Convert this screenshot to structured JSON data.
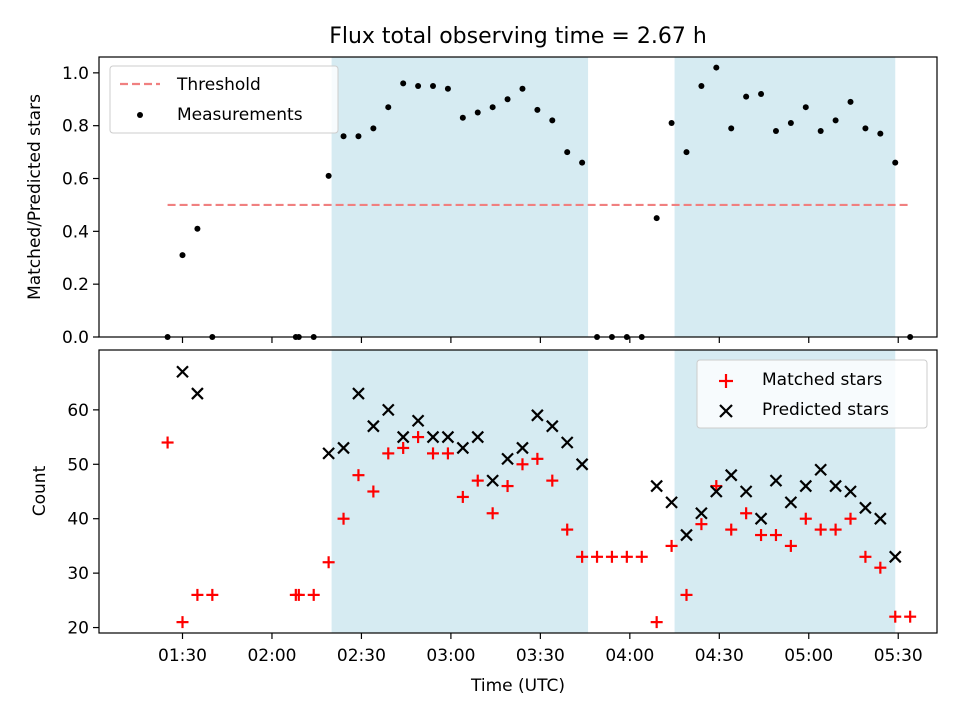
{
  "chart_data": [
    {
      "type": "scatter",
      "title": "Flux total observing time = 2.67 h",
      "ylabel": "Matched/Predicted stars",
      "xlabel": "",
      "xlim": [
        "01:02",
        "05:43"
      ],
      "ylim": [
        0,
        1.06
      ],
      "yticks": [
        "0.0",
        "0.2",
        "0.4",
        "0.6",
        "0.8",
        "1.0"
      ],
      "legend_position": "top-left",
      "shaded_intervals": [
        [
          "02:20",
          "03:46"
        ],
        [
          "04:15",
          "05:29"
        ]
      ],
      "threshold": {
        "name": "Threshold",
        "value": 0.5,
        "x_range": [
          "01:25",
          "05:34"
        ],
        "color": "#f08080"
      },
      "series": [
        {
          "name": "Measurements",
          "color": "#000000",
          "points": [
            [
              "01:25",
              0.0
            ],
            [
              "01:30",
              0.31
            ],
            [
              "01:35",
              0.41
            ],
            [
              "01:40",
              0.0
            ],
            [
              "02:08",
              0.0
            ],
            [
              "02:09",
              0.0
            ],
            [
              "02:14",
              0.0
            ],
            [
              "02:19",
              0.61
            ],
            [
              "02:24",
              0.76
            ],
            [
              "02:29",
              0.76
            ],
            [
              "02:34",
              0.79
            ],
            [
              "02:39",
              0.87
            ],
            [
              "02:44",
              0.96
            ],
            [
              "02:49",
              0.95
            ],
            [
              "02:54",
              0.95
            ],
            [
              "02:59",
              0.94
            ],
            [
              "03:04",
              0.83
            ],
            [
              "03:09",
              0.85
            ],
            [
              "03:14",
              0.87
            ],
            [
              "03:19",
              0.9
            ],
            [
              "03:24",
              0.94
            ],
            [
              "03:29",
              0.86
            ],
            [
              "03:34",
              0.82
            ],
            [
              "03:39",
              0.7
            ],
            [
              "03:44",
              0.66
            ],
            [
              "03:49",
              0.0
            ],
            [
              "03:54",
              0.0
            ],
            [
              "03:59",
              0.0
            ],
            [
              "04:04",
              0.0
            ],
            [
              "04:09",
              0.45
            ],
            [
              "04:14",
              0.81
            ],
            [
              "04:19",
              0.7
            ],
            [
              "04:24",
              0.95
            ],
            [
              "04:29",
              1.02
            ],
            [
              "04:34",
              0.79
            ],
            [
              "04:39",
              0.91
            ],
            [
              "04:44",
              0.92
            ],
            [
              "04:49",
              0.78
            ],
            [
              "04:54",
              0.81
            ],
            [
              "04:59",
              0.87
            ],
            [
              "05:04",
              0.78
            ],
            [
              "05:09",
              0.82
            ],
            [
              "05:14",
              0.89
            ],
            [
              "05:19",
              0.79
            ],
            [
              "05:24",
              0.77
            ],
            [
              "05:29",
              0.66
            ],
            [
              "05:34",
              0.0
            ]
          ]
        }
      ]
    },
    {
      "type": "scatter",
      "title": "",
      "ylabel": "Count",
      "xlabel": "Time (UTC)",
      "xlim": [
        "01:02",
        "05:43"
      ],
      "ylim": [
        19,
        71
      ],
      "yticks": [
        "20",
        "30",
        "40",
        "50",
        "60"
      ],
      "xticks": [
        "01:30",
        "02:00",
        "02:30",
        "03:00",
        "03:30",
        "04:00",
        "04:30",
        "05:00",
        "05:30"
      ],
      "legend_position": "top-right",
      "shaded_intervals": [
        [
          "02:20",
          "03:46"
        ],
        [
          "04:15",
          "05:29"
        ]
      ],
      "series": [
        {
          "name": "Matched stars",
          "color": "#ff0000",
          "marker": "+",
          "points": [
            [
              "01:25",
              54
            ],
            [
              "01:30",
              21
            ],
            [
              "01:35",
              26
            ],
            [
              "01:40",
              26
            ],
            [
              "02:08",
              26
            ],
            [
              "02:09",
              26
            ],
            [
              "02:14",
              26
            ],
            [
              "02:19",
              32
            ],
            [
              "02:24",
              40
            ],
            [
              "02:29",
              48
            ],
            [
              "02:34",
              45
            ],
            [
              "02:39",
              52
            ],
            [
              "02:44",
              53
            ],
            [
              "02:49",
              55
            ],
            [
              "02:54",
              52
            ],
            [
              "02:59",
              52
            ],
            [
              "03:04",
              44
            ],
            [
              "03:09",
              47
            ],
            [
              "03:14",
              41
            ],
            [
              "03:19",
              46
            ],
            [
              "03:24",
              50
            ],
            [
              "03:29",
              51
            ],
            [
              "03:34",
              47
            ],
            [
              "03:39",
              38
            ],
            [
              "03:44",
              33
            ],
            [
              "03:49",
              33
            ],
            [
              "03:54",
              33
            ],
            [
              "03:59",
              33
            ],
            [
              "04:04",
              33
            ],
            [
              "04:09",
              21
            ],
            [
              "04:14",
              35
            ],
            [
              "04:19",
              26
            ],
            [
              "04:24",
              39
            ],
            [
              "04:29",
              46
            ],
            [
              "04:34",
              38
            ],
            [
              "04:39",
              41
            ],
            [
              "04:44",
              37
            ],
            [
              "04:49",
              37
            ],
            [
              "04:54",
              35
            ],
            [
              "04:59",
              40
            ],
            [
              "05:04",
              38
            ],
            [
              "05:09",
              38
            ],
            [
              "05:14",
              40
            ],
            [
              "05:19",
              33
            ],
            [
              "05:24",
              31
            ],
            [
              "05:29",
              22
            ],
            [
              "05:34",
              22
            ]
          ]
        },
        {
          "name": "Predicted stars",
          "color": "#000000",
          "marker": "x",
          "points": [
            [
              "01:30",
              67
            ],
            [
              "01:35",
              63
            ],
            [
              "02:19",
              52
            ],
            [
              "02:24",
              53
            ],
            [
              "02:29",
              63
            ],
            [
              "02:34",
              57
            ],
            [
              "02:39",
              60
            ],
            [
              "02:44",
              55
            ],
            [
              "02:49",
              58
            ],
            [
              "02:54",
              55
            ],
            [
              "02:59",
              55
            ],
            [
              "03:04",
              53
            ],
            [
              "03:09",
              55
            ],
            [
              "03:14",
              47
            ],
            [
              "03:19",
              51
            ],
            [
              "03:24",
              53
            ],
            [
              "03:29",
              59
            ],
            [
              "03:34",
              57
            ],
            [
              "03:39",
              54
            ],
            [
              "03:44",
              50
            ],
            [
              "04:09",
              46
            ],
            [
              "04:14",
              43
            ],
            [
              "04:19",
              37
            ],
            [
              "04:24",
              41
            ],
            [
              "04:29",
              45
            ],
            [
              "04:34",
              48
            ],
            [
              "04:39",
              45
            ],
            [
              "04:44",
              40
            ],
            [
              "04:49",
              47
            ],
            [
              "04:54",
              43
            ],
            [
              "04:59",
              46
            ],
            [
              "05:04",
              49
            ],
            [
              "05:09",
              46
            ],
            [
              "05:14",
              45
            ],
            [
              "05:19",
              42
            ],
            [
              "05:24",
              40
            ],
            [
              "05:29",
              33
            ]
          ]
        }
      ]
    }
  ]
}
